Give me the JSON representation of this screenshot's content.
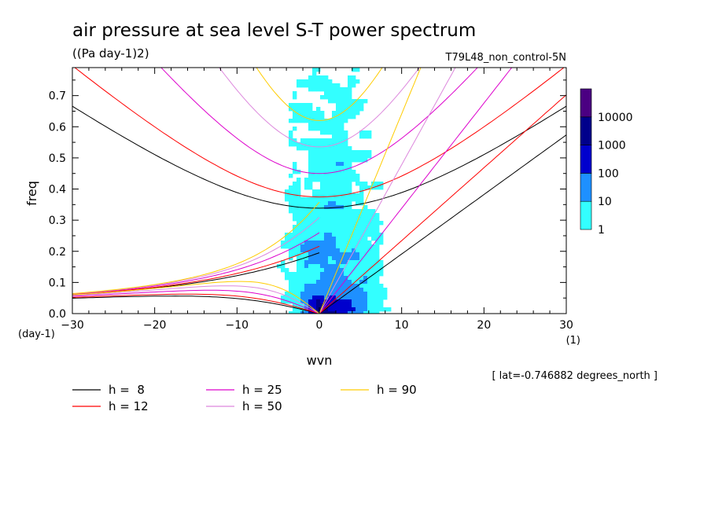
{
  "chart_data": {
    "type": "heatmap",
    "title": "air pressure at sea level S-T power spectrum",
    "units": "((Pa day-1)2)",
    "experiment": "T79L48_non_control-5N",
    "xlabel": "wvn",
    "ylabel": "freq",
    "x_unit": "(1)",
    "y_unit": "(day-1)",
    "xlim": [
      -30,
      30
    ],
    "ylim": [
      0,
      0.79
    ],
    "xticks": [
      -30,
      -20,
      -10,
      0,
      10,
      20,
      30
    ],
    "yticks": [
      0.0,
      0.1,
      0.2,
      0.3,
      0.4,
      0.5,
      0.6,
      0.7
    ],
    "annotation": "[ lat=-0.746882 degrees_north ]",
    "colorbar": {
      "levels": [
        1,
        10,
        100,
        1000,
        10000
      ],
      "level_labels": [
        "1",
        "10",
        "100",
        "1000",
        "10000"
      ],
      "colors": [
        "#33ffff",
        "#1e90ff",
        "#0000cd",
        "#00008b",
        "#4b0082"
      ]
    },
    "dispersion_curves": {
      "equivalent_depths_m": [
        8,
        12,
        25,
        50,
        90
      ],
      "legend": [
        {
          "label": "h =  8",
          "color": "#000000"
        },
        {
          "label": "h = 12",
          "color": "#ff0000"
        },
        {
          "label": "h = 25",
          "color": "#dd00cc"
        },
        {
          "label": "h = 50",
          "color": "#dd88dd"
        },
        {
          "label": "h = 90",
          "color": "#ffcc00"
        }
      ]
    }
  }
}
